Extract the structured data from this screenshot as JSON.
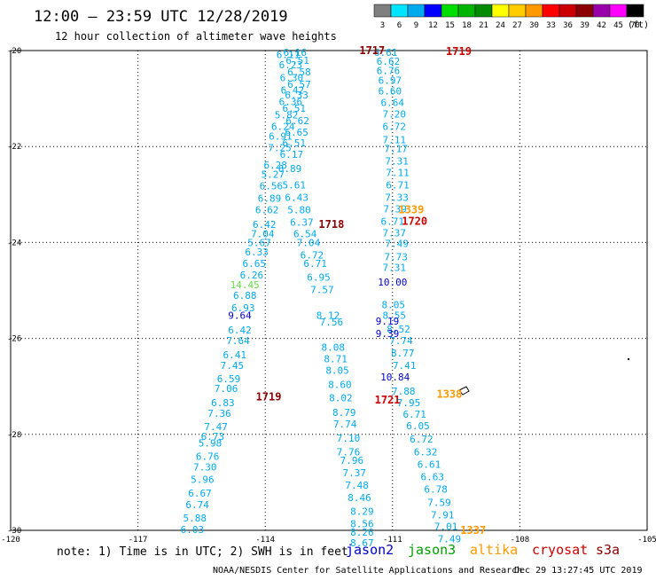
{
  "header": {
    "title": "12:00 – 23:59 UTC 12/28/2019",
    "subtitle": "12 hour collection of altimeter wave heights"
  },
  "legend": {
    "unit": "(ft)",
    "levels": [
      {
        "label": "3",
        "color": "#7f7f7f"
      },
      {
        "label": "6",
        "color": "#00e5ff"
      },
      {
        "label": "9",
        "color": "#00aaee"
      },
      {
        "label": "12",
        "color": "#0000ff"
      },
      {
        "label": "15",
        "color": "#00dd00"
      },
      {
        "label": "18",
        "color": "#00b400"
      },
      {
        "label": "21",
        "color": "#008a00"
      },
      {
        "label": "24",
        "color": "#ffff00"
      },
      {
        "label": "27",
        "color": "#ffcc00"
      },
      {
        "label": "30",
        "color": "#ff9900"
      },
      {
        "label": "33",
        "color": "#ff0000"
      },
      {
        "label": "36",
        "color": "#cc0000"
      },
      {
        "label": "39",
        "color": "#8b0000"
      },
      {
        "label": "42",
        "color": "#9900aa"
      },
      {
        "label": "45",
        "color": "#ff00ff"
      },
      {
        "label": "70",
        "color": "#000000"
      }
    ]
  },
  "footer": {
    "note": "note: 1) Time is in UTC; 2) SWH is in feet",
    "credit": "NOAA/NESDIS Center for Satellite Applications and Research",
    "timestamp": "Dec 29 13:27:45 UTC 2019",
    "satellites": [
      {
        "name": "jason2",
        "color": "#0000cc"
      },
      {
        "name": "jason3",
        "color": "#00a000"
      },
      {
        "name": "altika",
        "color": "#ff9900"
      },
      {
        "name": "cryosat",
        "color": "#cc0000"
      },
      {
        "name": "s3a",
        "color": "#8b0000"
      }
    ]
  },
  "chart_data": {
    "type": "scatter",
    "title": "",
    "xlabel": "",
    "ylabel": "",
    "xlim": [
      -120,
      -105
    ],
    "ylim": [
      -30,
      -20
    ],
    "grid": true,
    "x_ticks": [
      -120,
      -117,
      -114,
      -111,
      -108,
      -105
    ],
    "x_tick_labels": [
      "-120",
      "-117",
      "-114",
      "-111",
      "-108",
      "-105"
    ],
    "y_ticks": [
      -20,
      -22,
      -24,
      -26,
      -28,
      -30
    ],
    "y_tick_labels": [
      "-20",
      "-22",
      "-24",
      "-26",
      "-28",
      "-30"
    ],
    "series": [
      {
        "color": "#00aaee",
        "points": [
          [
            -113.3,
            -20.04,
            "6.16"
          ],
          [
            -113.46,
            -20.08,
            "6.11"
          ],
          [
            -113.24,
            -20.2,
            "6.51"
          ],
          [
            -113.4,
            -20.3,
            "6.23"
          ],
          [
            -113.2,
            -20.44,
            "6.58"
          ],
          [
            -113.38,
            -20.56,
            "6.30"
          ],
          [
            -113.2,
            -20.7,
            "6.57"
          ],
          [
            -113.36,
            -20.82,
            "6.42"
          ],
          [
            -113.26,
            -20.92,
            "6.33"
          ],
          [
            -113.4,
            -21.06,
            "6.36"
          ],
          [
            -113.32,
            -21.2,
            "6.51"
          ],
          [
            -113.5,
            -21.34,
            "5.82"
          ],
          [
            -113.24,
            -21.46,
            "6.62"
          ],
          [
            -113.58,
            -21.58,
            "6.24"
          ],
          [
            -113.26,
            -21.7,
            "6.65"
          ],
          [
            -113.64,
            -21.78,
            "6.91"
          ],
          [
            -113.32,
            -21.92,
            "6.51"
          ],
          [
            -113.66,
            -22.02,
            "7.25"
          ],
          [
            -113.38,
            -22.16,
            "6.17"
          ],
          [
            -113.76,
            -22.38,
            "6.28"
          ],
          [
            -113.42,
            -22.46,
            "6.89"
          ],
          [
            -113.82,
            -22.58,
            "5.27"
          ],
          [
            -113.32,
            -22.8,
            "5.61"
          ],
          [
            -113.86,
            -22.82,
            "6.56"
          ],
          [
            -113.26,
            -23.06,
            "6.43"
          ],
          [
            -113.9,
            -23.08,
            "6.89"
          ],
          [
            -113.2,
            -23.32,
            "5.80"
          ],
          [
            -113.96,
            -23.32,
            "6.62"
          ],
          [
            -113.14,
            -23.58,
            "6.37"
          ],
          [
            -114.02,
            -23.62,
            "6.42"
          ],
          [
            -113.06,
            -23.82,
            "6.54"
          ],
          [
            -114.06,
            -23.82,
            "7.04"
          ],
          [
            -112.98,
            -24.0,
            "7.04"
          ],
          [
            -114.14,
            -24.0,
            "5.67"
          ],
          [
            -112.9,
            -24.26,
            "6.72"
          ],
          [
            -114.2,
            -24.2,
            "6.33"
          ],
          [
            -112.82,
            -24.44,
            "6.71"
          ],
          [
            -114.26,
            -24.44,
            "6.65"
          ],
          [
            -112.74,
            -24.72,
            "6.95"
          ],
          [
            -114.32,
            -24.68,
            "6.26"
          ],
          [
            -112.66,
            -24.98,
            "7.57"
          ],
          [
            -114.48,
            -25.1,
            "6.88"
          ],
          [
            -114.52,
            -25.36,
            "6.93"
          ],
          [
            -112.52,
            -25.52,
            "8.12"
          ],
          [
            -114.6,
            -25.82,
            "6.42"
          ],
          [
            -112.44,
            -25.66,
            "7.56"
          ],
          [
            -114.64,
            -26.04,
            "7.64"
          ],
          [
            -112.4,
            -26.18,
            "8.08"
          ],
          [
            -114.72,
            -26.34,
            "6.41"
          ],
          [
            -112.34,
            -26.42,
            "8.71"
          ],
          [
            -114.78,
            -26.56,
            "7.45"
          ],
          [
            -112.3,
            -26.66,
            "8.05"
          ],
          [
            -114.86,
            -26.84,
            "6.59"
          ],
          [
            -112.24,
            -26.96,
            "8.60"
          ],
          [
            -114.92,
            -27.04,
            "7.06"
          ],
          [
            -112.22,
            -27.24,
            "8.02"
          ],
          [
            -115.0,
            -27.34,
            "6.83"
          ],
          [
            -112.14,
            -27.54,
            "8.79"
          ],
          [
            -115.08,
            -27.56,
            "7.36"
          ],
          [
            -112.12,
            -27.78,
            "7.74"
          ],
          [
            -115.16,
            -27.84,
            "7.47"
          ],
          [
            -112.04,
            -28.08,
            "7.10"
          ],
          [
            -115.24,
            -28.04,
            "6.73"
          ],
          [
            -112.04,
            -28.36,
            "7.76"
          ],
          [
            -115.3,
            -28.18,
            "5.98"
          ],
          [
            -111.96,
            -28.54,
            "7.96"
          ],
          [
            -115.36,
            -28.46,
            "6.76"
          ],
          [
            -111.9,
            -28.8,
            "7.37"
          ],
          [
            -115.42,
            -28.68,
            "7.30"
          ],
          [
            -111.84,
            -29.06,
            "7.48"
          ],
          [
            -115.48,
            -28.94,
            "5.96"
          ],
          [
            -111.78,
            -29.32,
            "8.46"
          ],
          [
            -115.54,
            -29.22,
            "6.67"
          ],
          [
            -111.72,
            -29.6,
            "8.29"
          ],
          [
            -115.6,
            -29.46,
            "6.74"
          ],
          [
            -111.72,
            -29.86,
            "8.56"
          ],
          [
            -115.66,
            -29.74,
            "5.88"
          ],
          [
            -111.72,
            -30.04,
            "8.26"
          ],
          [
            -115.72,
            -29.98,
            "6.03"
          ],
          [
            -111.72,
            -30.26,
            "8.67"
          ],
          [
            -111.16,
            -20.04,
            "6.61"
          ],
          [
            -111.1,
            -20.22,
            "6.62"
          ],
          [
            -111.1,
            -20.42,
            "6.76"
          ],
          [
            -111.06,
            -20.62,
            "6.97"
          ],
          [
            -111.06,
            -20.84,
            "6.60"
          ],
          [
            -111.0,
            -21.08,
            "6.64"
          ],
          [
            -110.96,
            -21.32,
            "7.20"
          ],
          [
            -110.96,
            -21.58,
            "6.72"
          ],
          [
            -110.96,
            -21.86,
            "7.11"
          ],
          [
            -110.92,
            -22.04,
            "7.17"
          ],
          [
            -110.9,
            -22.3,
            "7.31"
          ],
          [
            -110.88,
            -22.54,
            "7.11"
          ],
          [
            -110.88,
            -22.8,
            "6.71"
          ],
          [
            -110.9,
            -23.06,
            "7.33"
          ],
          [
            -110.94,
            -23.3,
            "7.39"
          ],
          [
            -111.0,
            -23.56,
            "6.71"
          ],
          [
            -110.96,
            -23.8,
            "7.37"
          ],
          [
            -110.9,
            -24.02,
            "7.49"
          ],
          [
            -110.92,
            -24.3,
            "7.73"
          ],
          [
            -110.96,
            -24.52,
            "7.31"
          ],
          [
            -110.98,
            -25.3,
            "8.05"
          ],
          [
            -110.96,
            -25.52,
            "8.55"
          ],
          [
            -110.86,
            -25.8,
            "8.52"
          ],
          [
            -110.8,
            -26.04,
            "7.74"
          ],
          [
            -110.76,
            -26.3,
            "8.77"
          ],
          [
            -110.72,
            -26.56,
            "7.41"
          ],
          [
            -110.74,
            -27.1,
            "7.88"
          ],
          [
            -110.62,
            -27.34,
            "7.95"
          ],
          [
            -110.48,
            -27.58,
            "6.71"
          ],
          [
            -110.4,
            -27.82,
            "6.05"
          ],
          [
            -110.32,
            -28.1,
            "6.72"
          ],
          [
            -110.22,
            -28.36,
            "6.32"
          ],
          [
            -110.14,
            -28.62,
            "6.61"
          ],
          [
            -110.06,
            -28.88,
            "6.63"
          ],
          [
            -109.98,
            -29.14,
            "6.78"
          ],
          [
            -109.9,
            -29.42,
            "7.59"
          ],
          [
            -109.82,
            -29.68,
            "7.91"
          ],
          [
            -109.74,
            -29.92,
            "7.01"
          ],
          [
            -109.66,
            -30.18,
            "7.49"
          ]
        ]
      },
      {
        "color": "#0000cc",
        "points": [
          [
            -111.0,
            -24.82,
            "10.00"
          ],
          [
            -111.12,
            -25.64,
            "9.19"
          ],
          [
            -111.12,
            -25.9,
            "9.39"
          ],
          [
            -114.6,
            -25.52,
            "9.64"
          ],
          [
            -110.94,
            -26.8,
            "10.84"
          ]
        ]
      },
      {
        "color": "#66dd44",
        "points": [
          [
            -114.48,
            -24.88,
            "14.45"
          ]
        ]
      },
      {
        "color": "#8b0000",
        "points": [
          [
            -111.48,
            -20.0,
            "1717"
          ],
          [
            -112.44,
            -23.62,
            "1718"
          ],
          [
            -113.92,
            -27.22,
            "1719"
          ]
        ]
      },
      {
        "color": "#cc0000",
        "points": [
          [
            -109.44,
            -20.02,
            "1719"
          ],
          [
            -110.48,
            -23.56,
            "1720"
          ],
          [
            -111.12,
            -27.28,
            "1721"
          ]
        ]
      },
      {
        "color": "#ff9900",
        "points": [
          [
            -110.56,
            -23.32,
            "1339"
          ],
          [
            -109.66,
            -27.16,
            "1338"
          ],
          [
            -109.1,
            -30.0,
            "1337"
          ]
        ]
      }
    ]
  }
}
